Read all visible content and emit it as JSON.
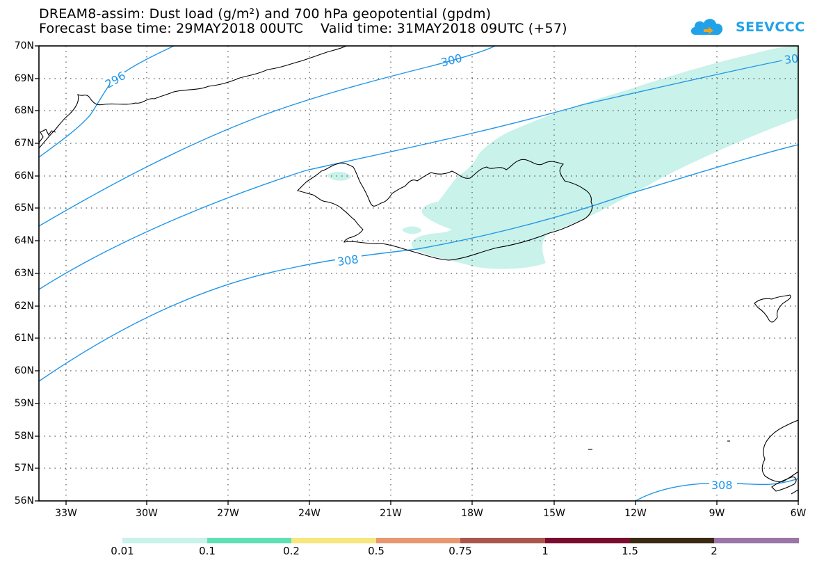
{
  "title_line1": "DREAM8-assim: Dust load (g/m²) and 700 hPa geopotential (gpdm)",
  "title_line2": "Forecast base time: 29MAY2018 00UTC    Valid time: 31MAY2018 09UTC (+57)",
  "logo_text": "SEEVCCC",
  "logo_icon": "cloud-logo-icon",
  "lat_labels": [
    "70N",
    "69N",
    "68N",
    "67N",
    "66N",
    "65N",
    "64N",
    "63N",
    "62N",
    "61N",
    "60N",
    "59N",
    "58N",
    "57N",
    "56N"
  ],
  "lon_labels": [
    "33W",
    "30W",
    "27W",
    "24W",
    "21W",
    "18W",
    "15W",
    "12W",
    "9W",
    "6W"
  ],
  "contour_labels": [
    "296",
    "300",
    "30",
    "308",
    "308"
  ],
  "colorbar": {
    "colors": [
      "#c8f2ea",
      "#5fe0b4",
      "#f7e77e",
      "#e89870",
      "#a9574c",
      "#7a0a2e",
      "#3b2a12",
      "#9a75a6"
    ],
    "labels": [
      "0.01",
      "0.1",
      "0.2",
      "0.5",
      "0.75",
      "1",
      "1.5",
      "2"
    ]
  },
  "colors": {
    "dust_fill": "#c8f2ea",
    "contour": "#2196e8",
    "coast": "#000000"
  }
}
